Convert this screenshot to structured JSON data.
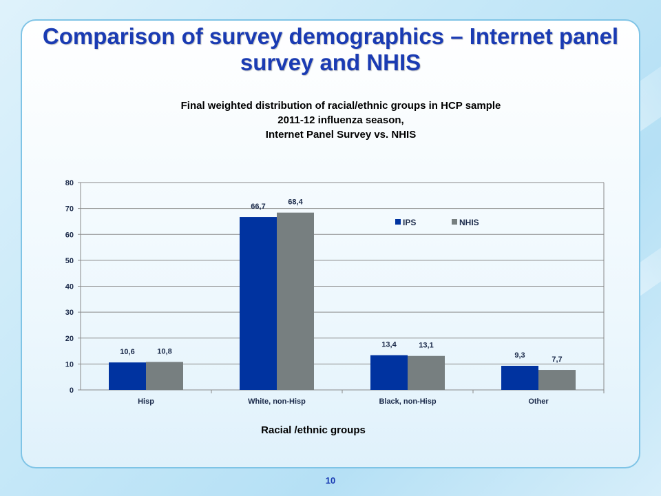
{
  "slide": {
    "title": "Comparison of survey demographics – Internet panel survey and NHIS",
    "page_number": "10"
  },
  "chart_data": {
    "type": "bar",
    "title_lines": [
      "Final weighted distribution of racial/ethnic groups in HCP sample",
      "2011-12 influenza season,",
      "Internet Panel Survey vs. NHIS"
    ],
    "xlabel": "Racial /ethnic groups",
    "ylabel": "",
    "categories": [
      "Hisp",
      "White, non-Hisp",
      "Black, non-Hisp",
      "Other"
    ],
    "series": [
      {
        "name": "IPS",
        "color": "#0033a0",
        "values": [
          10.6,
          66.7,
          13.4,
          9.3
        ],
        "labels": [
          "10,6",
          "66,7",
          "13,4",
          "9,3"
        ]
      },
      {
        "name": "NHIS",
        "color": "#777f80",
        "values": [
          10.8,
          68.4,
          13.1,
          7.7
        ],
        "labels": [
          "10,8",
          "68,4",
          "13,1",
          "7,7"
        ]
      }
    ],
    "ylim": [
      0,
      80
    ],
    "yticks": [
      0,
      10,
      20,
      30,
      40,
      50,
      60,
      70,
      80
    ],
    "grid": true,
    "legend": "top-right"
  }
}
